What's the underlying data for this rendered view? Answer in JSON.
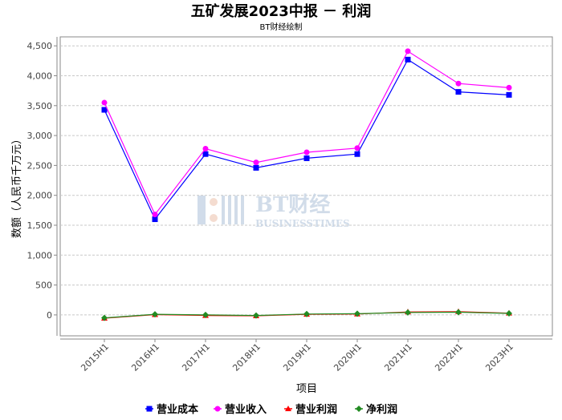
{
  "chart_data": {
    "type": "line",
    "title": "五矿发展2023中报 － 利润",
    "subtitle": "BT财经绘制",
    "xlabel": "项目",
    "ylabel": "数额（人民币千万元）",
    "categories": [
      "2015H1",
      "2016H1",
      "2017H1",
      "2018H1",
      "2019H1",
      "2020H1",
      "2021H1",
      "2022H1",
      "2023H1"
    ],
    "ylim": [
      -350,
      4650
    ],
    "yticks": [
      0,
      500,
      1000,
      1500,
      2000,
      2500,
      3000,
      3500,
      4000,
      4500
    ],
    "ytick_labels": [
      "0",
      "500",
      "1,000",
      "1,500",
      "2,000",
      "2,500",
      "3,000",
      "3,500",
      "4,000",
      "4,500"
    ],
    "grid": true,
    "legend_position": "bottom",
    "series": [
      {
        "name": "营业成本",
        "color": "#0000ff",
        "marker": "square",
        "values": [
          3430,
          1600,
          2690,
          2460,
          2620,
          2690,
          4270,
          3730,
          3680
        ]
      },
      {
        "name": "营业收入",
        "color": "#ff00ff",
        "marker": "circle",
        "values": [
          3550,
          1680,
          2780,
          2550,
          2720,
          2790,
          4410,
          3870,
          3800
        ]
      },
      {
        "name": "营业利润",
        "color": "#ff0000",
        "marker": "triangle",
        "values": [
          -55,
          5,
          -10,
          -15,
          10,
          15,
          50,
          55,
          30
        ]
      },
      {
        "name": "净利润",
        "color": "#228b22",
        "marker": "diamond",
        "values": [
          -50,
          10,
          0,
          -10,
          15,
          20,
          40,
          45,
          25
        ]
      }
    ]
  },
  "watermark": {
    "icon": "bt-logo-icon",
    "text_cn": "BT财经",
    "text_en": "BUSINESSTIMES"
  }
}
